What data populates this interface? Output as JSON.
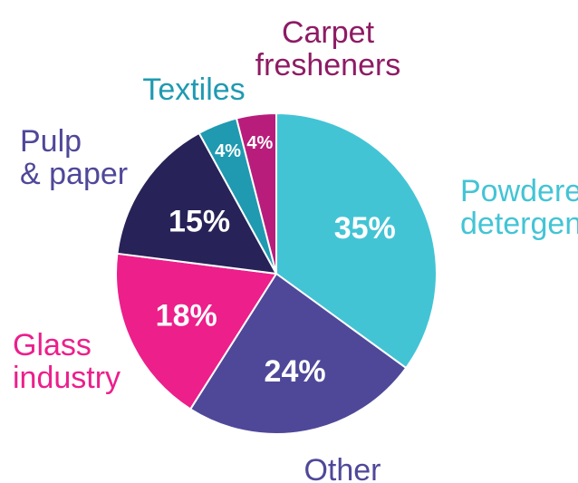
{
  "chart_data": {
    "type": "pie",
    "categories": [
      "Powdered detergent",
      "Other",
      "Glass industry",
      "Pulp & paper",
      "Textiles",
      "Carpet fresheners"
    ],
    "values": [
      35,
      24,
      18,
      15,
      4,
      4
    ],
    "value_labels": [
      "35%",
      "24%",
      "18%",
      "15%",
      "4%",
      "4%"
    ],
    "category_labels": [
      [
        "Powdered",
        "detergent"
      ],
      [
        "Other"
      ],
      [
        "Glass",
        "industry"
      ],
      [
        "Pulp",
        "& paper"
      ],
      [
        "Textiles"
      ],
      [
        "Carpet",
        "fresheners"
      ]
    ],
    "colors": [
      "#43c4d5",
      "#4f4899",
      "#ec1f8b",
      "#272257",
      "#1f9ab1",
      "#b81d7c"
    ],
    "label_colors": [
      "#43c4d5",
      "#4f4899",
      "#ec1f8b",
      "#4f4899",
      "#1f9ab1",
      "#8e1b64"
    ],
    "start_angle": "12 o'clock",
    "direction": "clockwise",
    "legend": "none"
  }
}
